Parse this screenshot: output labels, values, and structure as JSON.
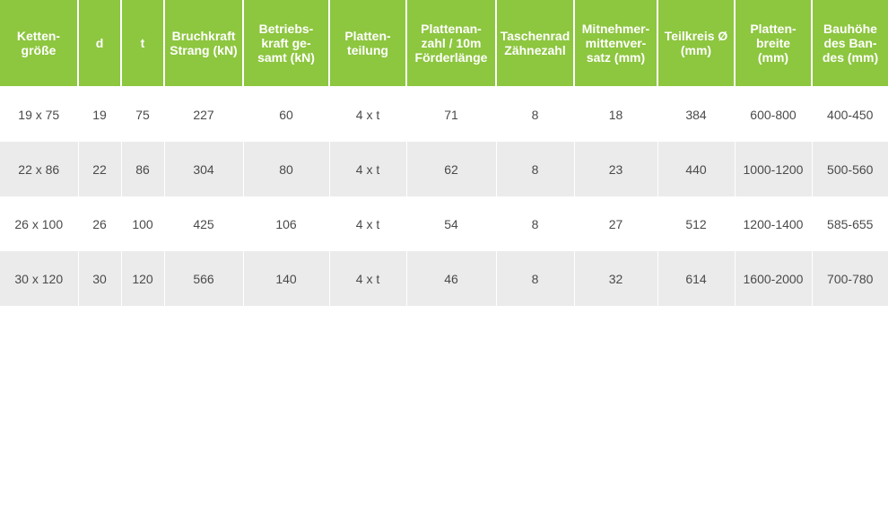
{
  "table": {
    "headers": [
      "Ketten-\ngröße",
      "d",
      "t",
      "Bruchkraft\nStrang (kN)",
      "Betriebs-\nkraft ge-\nsamt (kN)",
      "Platten-\nteilung",
      "Plattenan-\nzahl / 10m\nFörderlänge",
      "Taschenrad\nZähnezahl",
      "Mitnehmer-\nmittenver-\nsatz (mm)",
      "Teilkreis Ø\n(mm)",
      "Platten-\nbreite\n(mm)",
      "Bauhöhe\ndes Ban-\ndes (mm)"
    ],
    "rows": [
      [
        "19 x 75",
        "19",
        "75",
        "227",
        "60",
        "4 x t",
        "71",
        "8",
        "18",
        "384",
        "600-800",
        "400-450"
      ],
      [
        "22 x 86",
        "22",
        "86",
        "304",
        "80",
        "4 x t",
        "62",
        "8",
        "23",
        "440",
        "1000-1200",
        "500-560"
      ],
      [
        "26 x 100",
        "26",
        "100",
        "425",
        "106",
        "4 x t",
        "54",
        "8",
        "27",
        "512",
        "1200-1400",
        "585-655"
      ],
      [
        "30 x 120",
        "30",
        "120",
        "566",
        "140",
        "4 x t",
        "46",
        "8",
        "32",
        "614",
        "1600-2000",
        "700-780"
      ]
    ]
  },
  "colors": {
    "header_bg": "#8dc63f",
    "header_text": "#ffffff",
    "row_alt_bg": "#ebebeb",
    "cell_text": "#4a4a4a"
  }
}
